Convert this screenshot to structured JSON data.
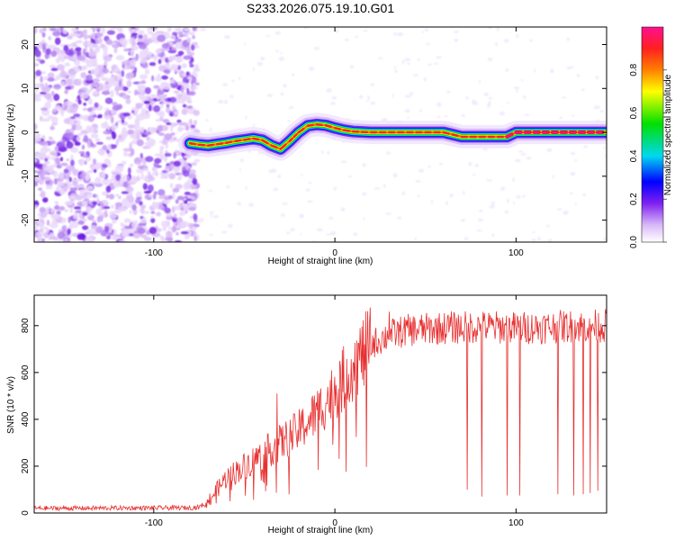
{
  "figure_title": "S233.2026.075.19.10.G01",
  "chart_data": [
    {
      "type": "heatmap",
      "xlabel": "Height of straight line (km)",
      "ylabel": "Frequency (Hz)",
      "xlim": [
        -166,
        150
      ],
      "ylim": [
        -25,
        24
      ],
      "xticks": [
        -100,
        0,
        100
      ],
      "yticks": [
        -20,
        -10,
        0,
        10,
        20
      ],
      "noise_region_x": [
        -166,
        -80
      ],
      "ridge": {
        "x": [
          -80,
          -75,
          -70,
          -65,
          -60,
          -55,
          -50,
          -45,
          -40,
          -35,
          -30,
          -25,
          -20,
          -15,
          -10,
          -5,
          0,
          5,
          10,
          20,
          30,
          40,
          50,
          60,
          65,
          70,
          80,
          90,
          95,
          100,
          110,
          120,
          130,
          140,
          150
        ],
        "y": [
          -2.5,
          -2.8,
          -3.0,
          -2.7,
          -2.4,
          -2.0,
          -1.7,
          -1.4,
          -1.8,
          -3.0,
          -3.8,
          -2.0,
          0.0,
          1.5,
          1.8,
          1.6,
          1.0,
          0.5,
          0.2,
          0.0,
          0.0,
          0.0,
          0.0,
          0.0,
          -0.5,
          -1.0,
          -1.0,
          -1.0,
          -1.0,
          0.0,
          0.0,
          0.0,
          0.0,
          0.0,
          0.0
        ]
      },
      "colorbar": {
        "label": "Normalized spectral amplitude",
        "range": [
          0,
          1
        ],
        "ticks": [
          "0.0",
          "0.2",
          "0.4",
          "0.6",
          "0.8"
        ],
        "tick_values": [
          0,
          0.2,
          0.4,
          0.6,
          0.8
        ],
        "stops": [
          {
            "v": 0.0,
            "c": "#ffffff"
          },
          {
            "v": 0.08,
            "c": "#d8b8f8"
          },
          {
            "v": 0.18,
            "c": "#8020f0"
          },
          {
            "v": 0.28,
            "c": "#0000ff"
          },
          {
            "v": 0.4,
            "c": "#00d8f0"
          },
          {
            "v": 0.55,
            "c": "#00e000"
          },
          {
            "v": 0.7,
            "c": "#ffff00"
          },
          {
            "v": 0.8,
            "c": "#ff8000"
          },
          {
            "v": 0.9,
            "c": "#ff2020"
          },
          {
            "v": 1.0,
            "c": "#ff1090"
          }
        ]
      }
    },
    {
      "type": "line",
      "xlabel": "Height of straight line (km)",
      "ylabel": "SNR (10 * v/v)",
      "xlim": [
        -166,
        150
      ],
      "ylim": [
        0,
        930
      ],
      "xticks": [
        -100,
        0,
        100
      ],
      "yticks": [
        0,
        200,
        400,
        600,
        800
      ],
      "color": "#e83030",
      "envelope": {
        "x": [
          -166,
          -80,
          -75,
          -70,
          -65,
          -60,
          -50,
          -40,
          -30,
          -20,
          -10,
          0,
          10,
          20,
          30,
          40,
          60,
          80,
          100,
          120,
          150
        ],
        "y": [
          20,
          22,
          25,
          50,
          100,
          150,
          200,
          250,
          300,
          350,
          430,
          520,
          630,
          720,
          760,
          780,
          790,
          795,
          790,
          795,
          800
        ]
      },
      "dropouts": [
        {
          "x": 73,
          "y": 100
        },
        {
          "x": 81,
          "y": 70
        },
        {
          "x": 95,
          "y": 75
        },
        {
          "x": 102,
          "y": 75
        },
        {
          "x": 123,
          "y": 80
        },
        {
          "x": 132,
          "y": 75
        },
        {
          "x": 137,
          "y": 80
        },
        {
          "x": 141,
          "y": 85
        },
        {
          "x": 145,
          "y": 95
        }
      ],
      "spikes": [
        {
          "x": -32,
          "y": 510
        },
        {
          "x": 30,
          "y": 860
        }
      ]
    }
  ]
}
